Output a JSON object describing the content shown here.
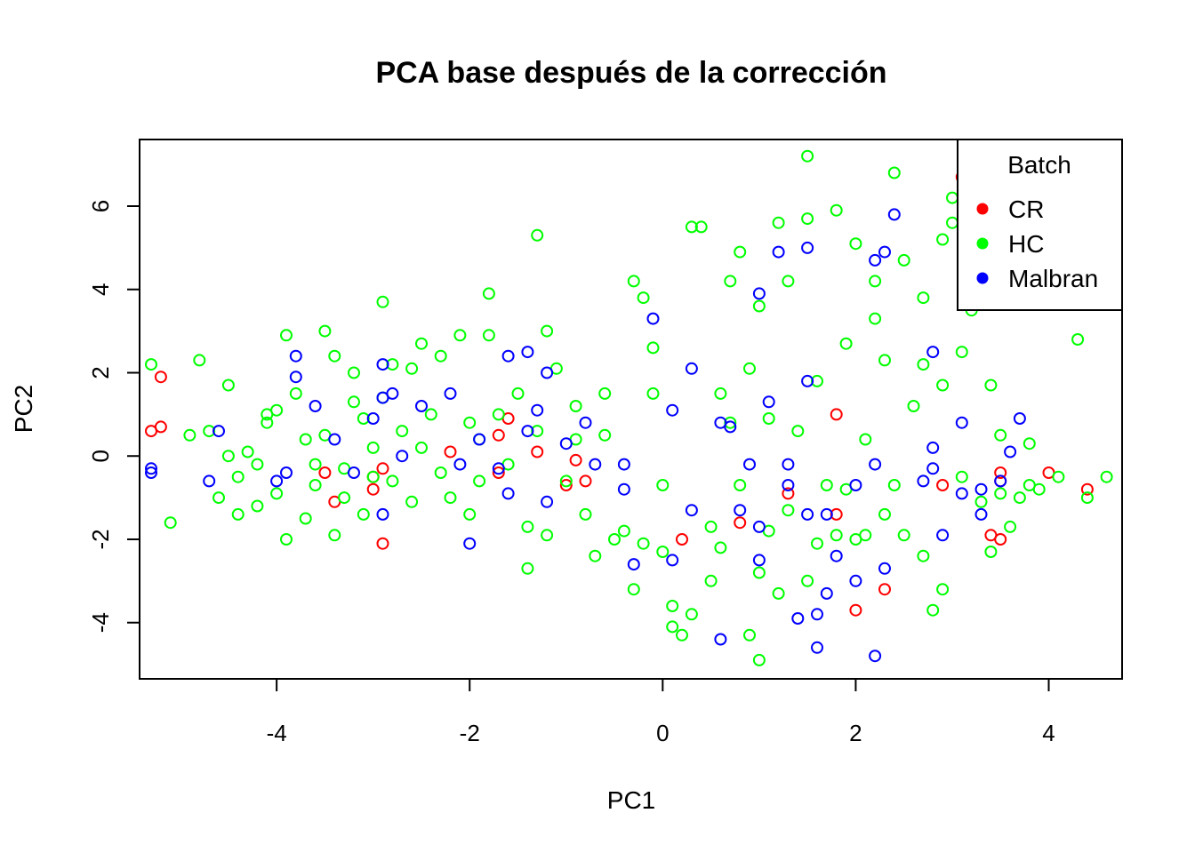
{
  "chart_data": {
    "type": "scatter",
    "title": "PCA base después de la corrección",
    "xlabel": "PC1",
    "ylabel": "PC2",
    "xlim": [
      -5.42,
      4.76
    ],
    "ylim": [
      -5.35,
      7.6
    ],
    "xticks": [
      -4,
      -2,
      0,
      2,
      4
    ],
    "yticks": [
      -4,
      -2,
      0,
      2,
      4,
      6
    ],
    "xtick_labels": [
      "-4",
      "-2",
      "0",
      "2",
      "4"
    ],
    "ytick_labels": [
      "-4",
      "-2",
      "0",
      "2",
      "4",
      "6"
    ],
    "grid": false,
    "legend": {
      "title": "Batch",
      "position": "top-right"
    },
    "series": [
      {
        "name": "CR",
        "color": "#ff0000",
        "points": [
          [
            -5.3,
            0.6
          ],
          [
            -5.2,
            1.9
          ],
          [
            -5.2,
            0.7
          ],
          [
            -3.4,
            -1.1
          ],
          [
            -3.5,
            -0.4
          ],
          [
            -3.0,
            -0.5
          ],
          [
            -3.0,
            -0.8
          ],
          [
            -2.9,
            -0.3
          ],
          [
            -2.9,
            -2.1
          ],
          [
            -2.2,
            0.1
          ],
          [
            -1.7,
            -0.4
          ],
          [
            -1.7,
            0.5
          ],
          [
            -1.6,
            0.9
          ],
          [
            -1.3,
            0.1
          ],
          [
            -1.0,
            -0.7
          ],
          [
            -0.9,
            -0.1
          ],
          [
            -0.8,
            -0.6
          ],
          [
            0.2,
            -2.0
          ],
          [
            0.8,
            -1.6
          ],
          [
            1.3,
            -0.9
          ],
          [
            1.8,
            -1.4
          ],
          [
            1.8,
            1.0
          ],
          [
            2.0,
            -3.7
          ],
          [
            2.3,
            -3.2
          ],
          [
            2.9,
            -0.7
          ],
          [
            3.1,
            6.7
          ],
          [
            3.4,
            -1.9
          ],
          [
            3.5,
            -2.0
          ],
          [
            3.5,
            -0.4
          ],
          [
            3.5,
            -0.6
          ],
          [
            4.0,
            -0.4
          ],
          [
            4.4,
            -0.8
          ]
        ]
      },
      {
        "name": "HC",
        "color": "#00ff00",
        "points": [
          [
            -5.3,
            2.2
          ],
          [
            -5.1,
            -1.6
          ],
          [
            -4.9,
            0.5
          ],
          [
            -4.8,
            2.3
          ],
          [
            -4.7,
            0.6
          ],
          [
            -4.6,
            -1.0
          ],
          [
            -4.5,
            0.0
          ],
          [
            -4.5,
            1.7
          ],
          [
            -4.4,
            -1.4
          ],
          [
            -4.4,
            -0.5
          ],
          [
            -4.3,
            0.1
          ],
          [
            -4.2,
            -1.2
          ],
          [
            -4.2,
            -0.2
          ],
          [
            -4.1,
            0.8
          ],
          [
            -4.1,
            1.0
          ],
          [
            -4.0,
            1.1
          ],
          [
            -4.0,
            -0.9
          ],
          [
            -3.9,
            -2.0
          ],
          [
            -3.9,
            2.9
          ],
          [
            -3.8,
            1.5
          ],
          [
            -3.7,
            -1.5
          ],
          [
            -3.7,
            0.4
          ],
          [
            -3.6,
            -0.7
          ],
          [
            -3.6,
            -0.2
          ],
          [
            -3.5,
            3.0
          ],
          [
            -3.5,
            0.5
          ],
          [
            -3.4,
            2.4
          ],
          [
            -3.4,
            -1.9
          ],
          [
            -3.3,
            -1.0
          ],
          [
            -3.3,
            -0.3
          ],
          [
            -3.2,
            1.3
          ],
          [
            -3.2,
            2.0
          ],
          [
            -3.1,
            0.9
          ],
          [
            -3.1,
            -1.4
          ],
          [
            -3.0,
            -0.5
          ],
          [
            -3.0,
            0.2
          ],
          [
            -2.9,
            1.4
          ],
          [
            -2.9,
            3.7
          ],
          [
            -2.8,
            2.2
          ],
          [
            -2.8,
            -0.6
          ],
          [
            -2.7,
            0.6
          ],
          [
            -2.6,
            2.1
          ],
          [
            -2.6,
            -1.1
          ],
          [
            -2.5,
            2.7
          ],
          [
            -2.5,
            0.2
          ],
          [
            -2.4,
            1.0
          ],
          [
            -2.3,
            2.4
          ],
          [
            -2.3,
            -0.4
          ],
          [
            -2.2,
            -1.0
          ],
          [
            -2.1,
            2.9
          ],
          [
            -2.0,
            0.8
          ],
          [
            -2.0,
            -1.4
          ],
          [
            -1.9,
            0.4
          ],
          [
            -1.9,
            -0.6
          ],
          [
            -1.8,
            3.9
          ],
          [
            -1.8,
            2.9
          ],
          [
            -1.7,
            1.0
          ],
          [
            -1.6,
            -0.2
          ],
          [
            -1.5,
            1.5
          ],
          [
            -1.4,
            -2.7
          ],
          [
            -1.4,
            -1.7
          ],
          [
            -1.3,
            5.3
          ],
          [
            -1.3,
            0.6
          ],
          [
            -1.2,
            3.0
          ],
          [
            -1.2,
            -1.9
          ],
          [
            -1.1,
            2.1
          ],
          [
            -1.0,
            -0.6
          ],
          [
            -0.9,
            1.2
          ],
          [
            -0.9,
            0.4
          ],
          [
            -0.8,
            -1.4
          ],
          [
            -0.7,
            -2.4
          ],
          [
            -0.6,
            1.5
          ],
          [
            -0.6,
            0.5
          ],
          [
            -0.5,
            -2.0
          ],
          [
            -0.4,
            -1.8
          ],
          [
            -0.3,
            4.2
          ],
          [
            -0.3,
            -3.2
          ],
          [
            -0.2,
            -2.1
          ],
          [
            -0.2,
            3.8
          ],
          [
            -0.1,
            1.5
          ],
          [
            -0.1,
            2.6
          ],
          [
            0.0,
            -2.3
          ],
          [
            0.0,
            -0.7
          ],
          [
            0.1,
            -3.6
          ],
          [
            0.1,
            -4.1
          ],
          [
            0.2,
            -4.3
          ],
          [
            0.3,
            -3.8
          ],
          [
            0.3,
            5.5
          ],
          [
            0.4,
            5.5
          ],
          [
            0.5,
            -3.0
          ],
          [
            0.5,
            -1.7
          ],
          [
            0.6,
            -2.2
          ],
          [
            0.6,
            1.5
          ],
          [
            0.7,
            0.8
          ],
          [
            0.7,
            4.2
          ],
          [
            0.8,
            4.9
          ],
          [
            0.8,
            -0.7
          ],
          [
            0.9,
            -4.3
          ],
          [
            0.9,
            2.1
          ],
          [
            1.0,
            -4.9
          ],
          [
            1.0,
            3.6
          ],
          [
            1.0,
            -2.8
          ],
          [
            1.1,
            -1.8
          ],
          [
            1.1,
            0.9
          ],
          [
            1.2,
            -3.3
          ],
          [
            1.2,
            5.6
          ],
          [
            1.3,
            4.2
          ],
          [
            1.3,
            -1.3
          ],
          [
            1.4,
            0.6
          ],
          [
            1.5,
            -3.0
          ],
          [
            1.5,
            7.2
          ],
          [
            1.5,
            5.7
          ],
          [
            1.6,
            -2.1
          ],
          [
            1.6,
            1.8
          ],
          [
            1.7,
            -0.7
          ],
          [
            1.8,
            5.9
          ],
          [
            1.8,
            -1.9
          ],
          [
            1.9,
            2.7
          ],
          [
            1.9,
            -0.8
          ],
          [
            2.0,
            -2.0
          ],
          [
            2.0,
            5.1
          ],
          [
            2.1,
            0.4
          ],
          [
            2.1,
            -1.9
          ],
          [
            2.2,
            4.2
          ],
          [
            2.2,
            3.3
          ],
          [
            2.3,
            2.3
          ],
          [
            2.3,
            -1.4
          ],
          [
            2.4,
            6.8
          ],
          [
            2.4,
            -0.7
          ],
          [
            2.5,
            4.7
          ],
          [
            2.5,
            -1.9
          ],
          [
            2.6,
            1.2
          ],
          [
            2.7,
            3.8
          ],
          [
            2.7,
            2.2
          ],
          [
            2.7,
            -2.4
          ],
          [
            2.8,
            -3.7
          ],
          [
            2.9,
            5.2
          ],
          [
            2.9,
            1.7
          ],
          [
            2.9,
            -3.2
          ],
          [
            3.0,
            6.2
          ],
          [
            3.0,
            5.6
          ],
          [
            3.1,
            2.5
          ],
          [
            3.1,
            -0.5
          ],
          [
            3.2,
            3.5
          ],
          [
            3.2,
            4.8
          ],
          [
            3.3,
            -1.1
          ],
          [
            3.4,
            -2.3
          ],
          [
            3.4,
            1.7
          ],
          [
            3.5,
            0.5
          ],
          [
            3.5,
            -0.9
          ],
          [
            3.6,
            -1.7
          ],
          [
            3.7,
            -1.0
          ],
          [
            3.8,
            0.3
          ],
          [
            3.8,
            -0.7
          ],
          [
            3.9,
            -0.8
          ],
          [
            4.1,
            -0.5
          ],
          [
            4.3,
            2.8
          ],
          [
            4.4,
            -1.0
          ],
          [
            4.6,
            -0.5
          ]
        ]
      },
      {
        "name": "Malbran",
        "color": "#0000ff",
        "points": [
          [
            -5.3,
            -0.4
          ],
          [
            -5.3,
            -0.3
          ],
          [
            -4.7,
            -0.6
          ],
          [
            -4.6,
            0.6
          ],
          [
            -4.0,
            -0.6
          ],
          [
            -3.9,
            -0.4
          ],
          [
            -3.8,
            2.4
          ],
          [
            -3.8,
            1.9
          ],
          [
            -3.6,
            1.2
          ],
          [
            -3.4,
            0.4
          ],
          [
            -3.2,
            -0.4
          ],
          [
            -3.0,
            0.9
          ],
          [
            -2.9,
            -1.4
          ],
          [
            -2.9,
            2.2
          ],
          [
            -2.9,
            1.4
          ],
          [
            -2.8,
            1.5
          ],
          [
            -2.7,
            0.0
          ],
          [
            -2.5,
            1.2
          ],
          [
            -2.2,
            1.5
          ],
          [
            -2.1,
            -0.2
          ],
          [
            -2.0,
            -2.1
          ],
          [
            -1.9,
            0.4
          ],
          [
            -1.7,
            -0.3
          ],
          [
            -1.6,
            2.4
          ],
          [
            -1.6,
            -0.9
          ],
          [
            -1.4,
            0.6
          ],
          [
            -1.4,
            2.5
          ],
          [
            -1.3,
            1.1
          ],
          [
            -1.2,
            2.0
          ],
          [
            -1.2,
            -1.1
          ],
          [
            -1.0,
            0.3
          ],
          [
            -0.8,
            0.8
          ],
          [
            -0.7,
            -0.2
          ],
          [
            -0.4,
            -0.8
          ],
          [
            -0.4,
            -0.2
          ],
          [
            -0.3,
            -2.6
          ],
          [
            -0.1,
            3.3
          ],
          [
            0.1,
            1.1
          ],
          [
            0.1,
            -2.5
          ],
          [
            0.3,
            2.1
          ],
          [
            0.3,
            -1.3
          ],
          [
            0.6,
            -4.4
          ],
          [
            0.6,
            0.8
          ],
          [
            0.7,
            0.7
          ],
          [
            0.8,
            -1.3
          ],
          [
            0.9,
            -0.2
          ],
          [
            1.0,
            -2.5
          ],
          [
            1.0,
            -1.7
          ],
          [
            1.0,
            3.9
          ],
          [
            1.1,
            1.3
          ],
          [
            1.2,
            4.9
          ],
          [
            1.3,
            -0.2
          ],
          [
            1.3,
            -0.7
          ],
          [
            1.4,
            -3.9
          ],
          [
            1.5,
            5.0
          ],
          [
            1.5,
            1.8
          ],
          [
            1.5,
            -1.4
          ],
          [
            1.6,
            -3.8
          ],
          [
            1.6,
            -4.6
          ],
          [
            1.7,
            -3.3
          ],
          [
            1.7,
            -1.4
          ],
          [
            1.8,
            -2.4
          ],
          [
            2.0,
            -0.7
          ],
          [
            2.0,
            -3.0
          ],
          [
            2.2,
            4.7
          ],
          [
            2.2,
            -0.2
          ],
          [
            2.2,
            -4.8
          ],
          [
            2.3,
            -2.7
          ],
          [
            2.3,
            4.9
          ],
          [
            2.4,
            5.8
          ],
          [
            2.7,
            -0.6
          ],
          [
            2.8,
            2.5
          ],
          [
            2.8,
            0.2
          ],
          [
            2.8,
            -0.3
          ],
          [
            2.9,
            -1.9
          ],
          [
            3.1,
            -0.9
          ],
          [
            3.1,
            0.8
          ],
          [
            3.3,
            -1.4
          ],
          [
            3.3,
            -0.8
          ],
          [
            3.5,
            -0.6
          ],
          [
            3.6,
            0.1
          ],
          [
            3.7,
            0.9
          ]
        ]
      }
    ]
  }
}
